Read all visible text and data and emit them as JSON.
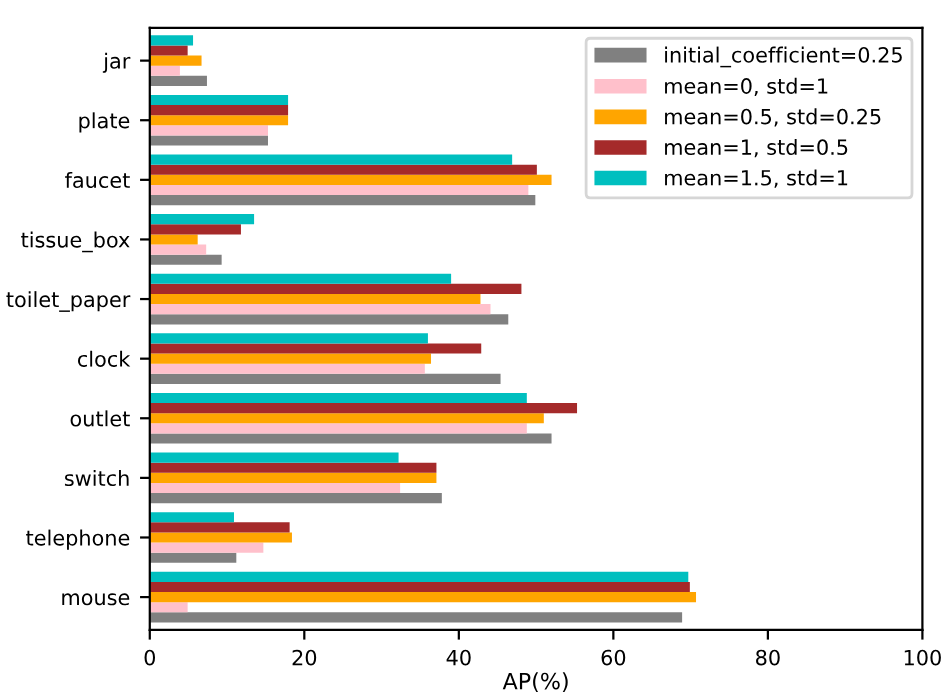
{
  "chart_data": {
    "type": "bar",
    "orientation": "horizontal",
    "xlabel": "AP(%)",
    "categories": [
      "jar",
      "plate",
      "faucet",
      "tissue_box",
      "toilet_paper",
      "clock",
      "outlet",
      "switch",
      "telephone",
      "mouse"
    ],
    "series": [
      {
        "name": "initial_coefficient=0.25",
        "color": "#808080",
        "values": [
          7.4,
          15.3,
          49.9,
          9.3,
          46.4,
          45.4,
          52,
          37.8,
          11.2,
          68.9
        ]
      },
      {
        "name": "mean=0, std=1",
        "color": "#ffc0cb",
        "values": [
          3.9,
          15.3,
          49,
          7.3,
          44.1,
          35.6,
          48.8,
          32.4,
          14.7,
          4.9
        ]
      },
      {
        "name": "mean=0.5, std=0.25",
        "color": "#ffa500",
        "values": [
          6.7,
          17.9,
          52,
          6.2,
          42.8,
          36.4,
          51,
          37.1,
          18.4,
          70.7
        ]
      },
      {
        "name": "mean=1, std=0.5",
        "color": "#a52a2a",
        "values": [
          4.9,
          17.9,
          50.1,
          11.8,
          48.1,
          42.9,
          55.3,
          37.1,
          18.1,
          69.9
        ]
      },
      {
        "name": "mean=1.5, std=1",
        "color": "#00bfbf",
        "values": [
          5.6,
          17.9,
          46.9,
          13.5,
          39,
          36,
          48.8,
          32.2,
          10.9,
          69.7
        ]
      }
    ],
    "xlim": [
      0,
      100
    ],
    "xticks": [
      0,
      20,
      40,
      60,
      80,
      100
    ],
    "legend": "top right",
    "grid": false
  }
}
